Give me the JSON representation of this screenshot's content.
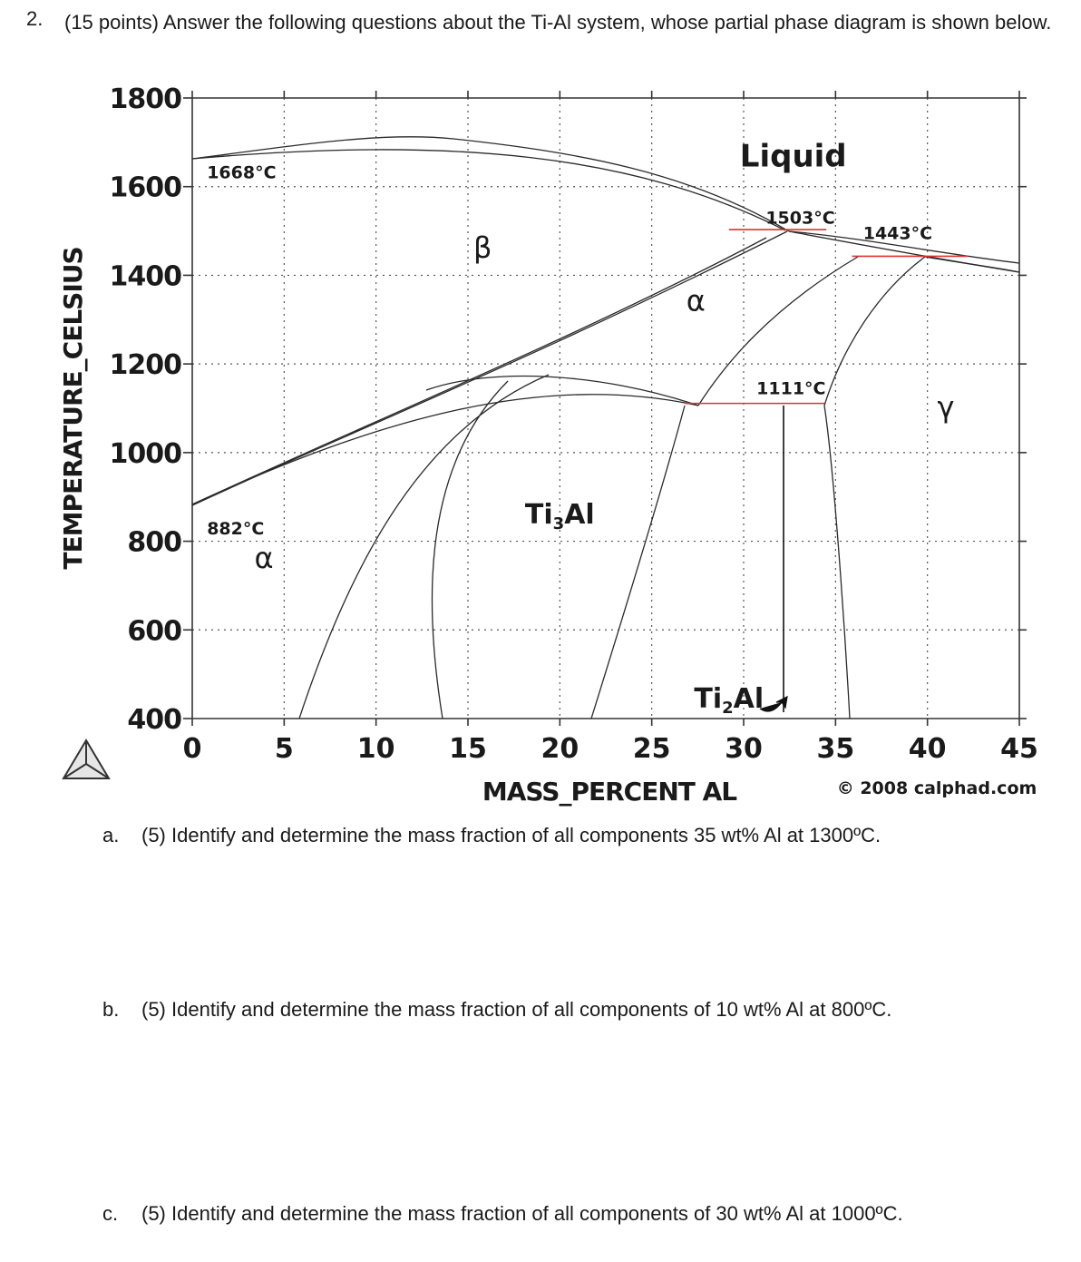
{
  "question": {
    "number": "2.",
    "text": "(15 points) Answer the following questions about the Ti-Al system, whose partial phase diagram is shown below."
  },
  "chart_data": {
    "type": "phase-diagram",
    "system": "Ti-Al",
    "xlabel": "MASS_PERCENT AL",
    "ylabel": "TEMPERATURE_CELSIUS",
    "xlim": [
      0,
      45
    ],
    "ylim": [
      400,
      1800
    ],
    "xticks": [
      "0",
      "5",
      "10",
      "15",
      "20",
      "25",
      "30",
      "35",
      "40",
      "45"
    ],
    "yticks": [
      "1800",
      "1600",
      "1400",
      "1200",
      "1000",
      "800",
      "600",
      "400"
    ],
    "phase_labels": [
      {
        "text": "Liquid",
        "x": 32.7,
        "y": 1645
      },
      {
        "text": "β",
        "x": 15.8,
        "y": 1440
      },
      {
        "text": "α",
        "x": 27.4,
        "y": 1320
      },
      {
        "text": "α",
        "x": 3.9,
        "y": 740
      },
      {
        "text": "Ti3Al",
        "x": 20,
        "y": 840
      },
      {
        "text": "Ti2Al",
        "x": 29.2,
        "y": 425
      },
      {
        "text": "γ",
        "x": 41,
        "y": 1080
      }
    ],
    "annotations": [
      {
        "text": "1668°C",
        "x": 0.8,
        "y": 1619
      },
      {
        "text": "1503°C",
        "x": 31.2,
        "y": 1517
      },
      {
        "text": "1443°C",
        "x": 36.5,
        "y": 1482
      },
      {
        "text": "1111°C",
        "x": 30.7,
        "y": 1132
      },
      {
        "text": "882°C",
        "x": 0.8,
        "y": 815
      }
    ],
    "invariant_lines": [
      {
        "T": 1503,
        "x_from": 29.2,
        "x_to": 34.5
      },
      {
        "T": 1443,
        "x_from": 35.9,
        "x_to": 42.2
      },
      {
        "T": 1111,
        "x_from": 26.8,
        "x_to": 34.4
      }
    ],
    "copyright": "© 2008 calphad.com"
  },
  "parts": [
    {
      "label": "a.",
      "text": "(5) Identify and determine the mass fraction of all components 35 wt% Al at 1300ºC."
    },
    {
      "label": "b.",
      "text": "(5) Identify and determine the mass fraction of all components of 10 wt% Al at 800ºC."
    },
    {
      "label": "c.",
      "text": "(5) Identify and determine the mass fraction of all components of 30 wt% Al at 1000ºC."
    }
  ]
}
